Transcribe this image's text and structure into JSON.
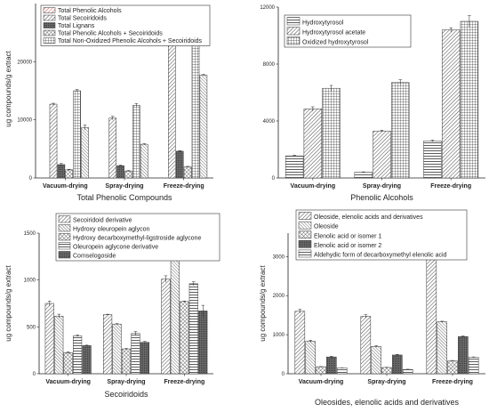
{
  "charts": [
    {
      "caption": "Total Phenolic Compounds",
      "ylabel": "ug compounds/g extract",
      "chart_data": {
        "type": "bar",
        "title": "",
        "xlabel": "Total Phenolic Compounds",
        "ylabel": "ug compounds/g extract",
        "ylim": [
          0,
          30000
        ],
        "yticks": [
          "0",
          "10000",
          "20000"
        ],
        "categories": [
          "Vacuum-drying",
          "Spray-drying",
          "Freeze-drying"
        ],
        "legend_position": "top-left",
        "series": [
          {
            "name": "Total Phenolic Alcohols",
            "values": [
              0,
              0,
              0
            ],
            "errors": [
              0,
              0,
              0
            ]
          },
          {
            "name": "Total Secoiridoids",
            "values": [
              12700,
              10300,
              24000
            ],
            "errors": [
              150,
              300,
              400
            ]
          },
          {
            "name": "Total Lignans",
            "values": [
              2300,
              2100,
              4600
            ],
            "errors": [
              200,
              100,
              100
            ]
          },
          {
            "name": "Total Phenolic Alcohols + Secoiridoids",
            "values": [
              1400,
              1200,
              1900
            ],
            "errors": [
              100,
              100,
              100
            ]
          },
          {
            "name": "Total Non-Oxidized Phenolic Alcohols + Secoiridoids",
            "values": [
              15000,
              12500,
              28500
            ],
            "errors": [
              200,
              300,
              500
            ]
          },
          {
            "name": "",
            "values": [
              8700,
              5800,
              17700
            ],
            "errors": [
              400,
              100,
              100
            ]
          }
        ]
      }
    },
    {
      "caption": "Phenolic Alcohols",
      "ylabel": "",
      "chart_data": {
        "type": "bar",
        "title": "",
        "xlabel": "Phenolic Alcohols",
        "ylabel": "",
        "ylim": [
          0,
          12000
        ],
        "yticks": [
          "0",
          "4000",
          "8000",
          "12000"
        ],
        "categories": [
          "Vacuum-drying",
          "Spray-drying",
          "Freeze-drying"
        ],
        "legend_position": "top-left",
        "series": [
          {
            "name": "Hydroxytyrosol",
            "values": [
              1550,
              400,
              2600
            ],
            "errors": [
              50,
              30,
              60
            ]
          },
          {
            "name": "Hydroxytyrosol acetate",
            "values": [
              4850,
              3300,
              10400
            ],
            "errors": [
              150,
              60,
              150
            ]
          },
          {
            "name": "Oxidized hydroxytyrosol",
            "values": [
              6300,
              6700,
              11000
            ],
            "errors": [
              200,
              200,
              400
            ]
          }
        ]
      }
    },
    {
      "caption": "Secoiridoids",
      "ylabel": "ug compounds/g extract",
      "chart_data": {
        "type": "bar",
        "title": "",
        "xlabel": "Secoiridoids",
        "ylabel": "ug compounds/g extract",
        "ylim": [
          0,
          1500
        ],
        "yticks": [
          "0",
          "500",
          "1000",
          "1500"
        ],
        "categories": [
          "Vacuum-drying",
          "Spray-drying",
          "Freeze-drying"
        ],
        "legend_position": "top-left",
        "series": [
          {
            "name": "Secoiridoid derivative",
            "values": [
              750,
              630,
              1010
            ],
            "errors": [
              25,
              5,
              35
            ]
          },
          {
            "name": "Hydroxy oleuropein aglycon",
            "values": [
              615,
              530,
              1235
            ],
            "errors": [
              20,
              5,
              10
            ]
          },
          {
            "name": "Hydroxy decarboxymethyl-ligstroside aglycone",
            "values": [
              225,
              265,
              770
            ],
            "errors": [
              10,
              5,
              5
            ]
          },
          {
            "name": "Oleuropein aglycone derivative",
            "values": [
              405,
              430,
              960
            ],
            "errors": [
              10,
              20,
              20
            ]
          },
          {
            "name": "Comselogoside",
            "values": [
              300,
              335,
              670
            ],
            "errors": [
              5,
              10,
              60
            ]
          }
        ]
      }
    },
    {
      "caption": "Oleosides, elenolic acids and derivatives",
      "ylabel": "ug compounds/g extract",
      "chart_data": {
        "type": "bar",
        "title": "",
        "xlabel": "Oleosides, elenolic acids and derivatives",
        "ylabel": "ug compounds/g extract",
        "ylim": [
          0,
          3600
        ],
        "yticks": [
          "0",
          "1000",
          "2000",
          "3000"
        ],
        "categories": [
          "Vacuum-drying",
          "Spray-drying",
          "Freeze-drying"
        ],
        "legend_position": "top-left",
        "series": [
          {
            "name": "Oleoside, elenolic acids and derivatives",
            "values": [
              1600,
              1470,
              3050
            ],
            "errors": [
              50,
              40,
              15
            ]
          },
          {
            "name": "Oleoside",
            "values": [
              830,
              700,
              1330
            ],
            "errors": [
              30,
              20,
              15
            ]
          },
          {
            "name": "Elenolic acid or isomer 1",
            "values": [
              180,
              160,
              330
            ],
            "errors": [
              5,
              5,
              10
            ]
          },
          {
            "name": "Elenolic acid or isomer 2",
            "values": [
              430,
              480,
              950
            ],
            "errors": [
              20,
              15,
              20
            ]
          },
          {
            "name": "Aldehydic form of decarboxymethyl elenolic acid",
            "values": [
              150,
              110,
              420
            ],
            "errors": [
              5,
              5,
              10
            ]
          }
        ]
      }
    }
  ]
}
